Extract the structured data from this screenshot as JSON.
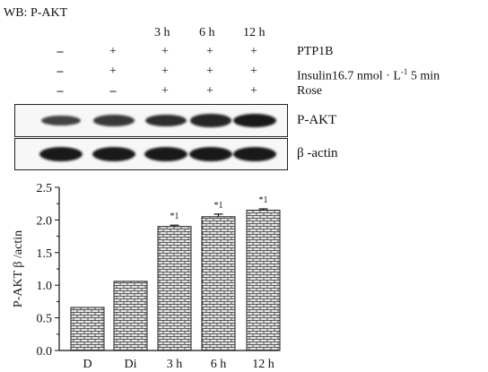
{
  "header": {
    "title": "WB: P-AKT"
  },
  "lanes": [
    "",
    "",
    "3 h",
    "6 h",
    "12 h"
  ],
  "treatments": [
    {
      "label": "PTP1B",
      "marks": [
        "–",
        "+",
        "+",
        "+",
        "+"
      ]
    },
    {
      "label": "Insulin16.7 nmol · L",
      "sup": "-1",
      "suffix": " 5 min",
      "marks": [
        "–",
        "+",
        "+",
        "+",
        "+"
      ]
    },
    {
      "label": "Rose",
      "marks": [
        "–",
        "–",
        "+",
        "+",
        "+"
      ]
    }
  ],
  "blots": [
    {
      "label": "P-AKT",
      "intensity": [
        0.55,
        0.65,
        0.75,
        0.82,
        0.95
      ]
    },
    {
      "label": "β -actin",
      "intensity": [
        0.95,
        0.95,
        0.95,
        0.95,
        0.95
      ]
    }
  ],
  "chart_data": {
    "type": "bar",
    "categories": [
      "D",
      "Di",
      "3 h",
      "6 h",
      "12 h"
    ],
    "values": [
      0.66,
      1.06,
      1.9,
      2.05,
      2.15
    ],
    "errors": [
      0,
      0,
      0.02,
      0.04,
      0.02
    ],
    "annotations": [
      "",
      "",
      "*1",
      "*1",
      "*1"
    ],
    "ylabel": "P-AKT β /actin",
    "ylim": [
      0,
      2.5
    ],
    "yticks": [
      "0.0",
      "0.5",
      "1.0",
      "1.5",
      "2.0",
      "2.5"
    ],
    "grid": false,
    "bar_pattern": "brick hatch",
    "colors": {
      "bar_fill": "#e6e6e6",
      "pattern_line": "#333333",
      "axis": "#111111"
    }
  }
}
